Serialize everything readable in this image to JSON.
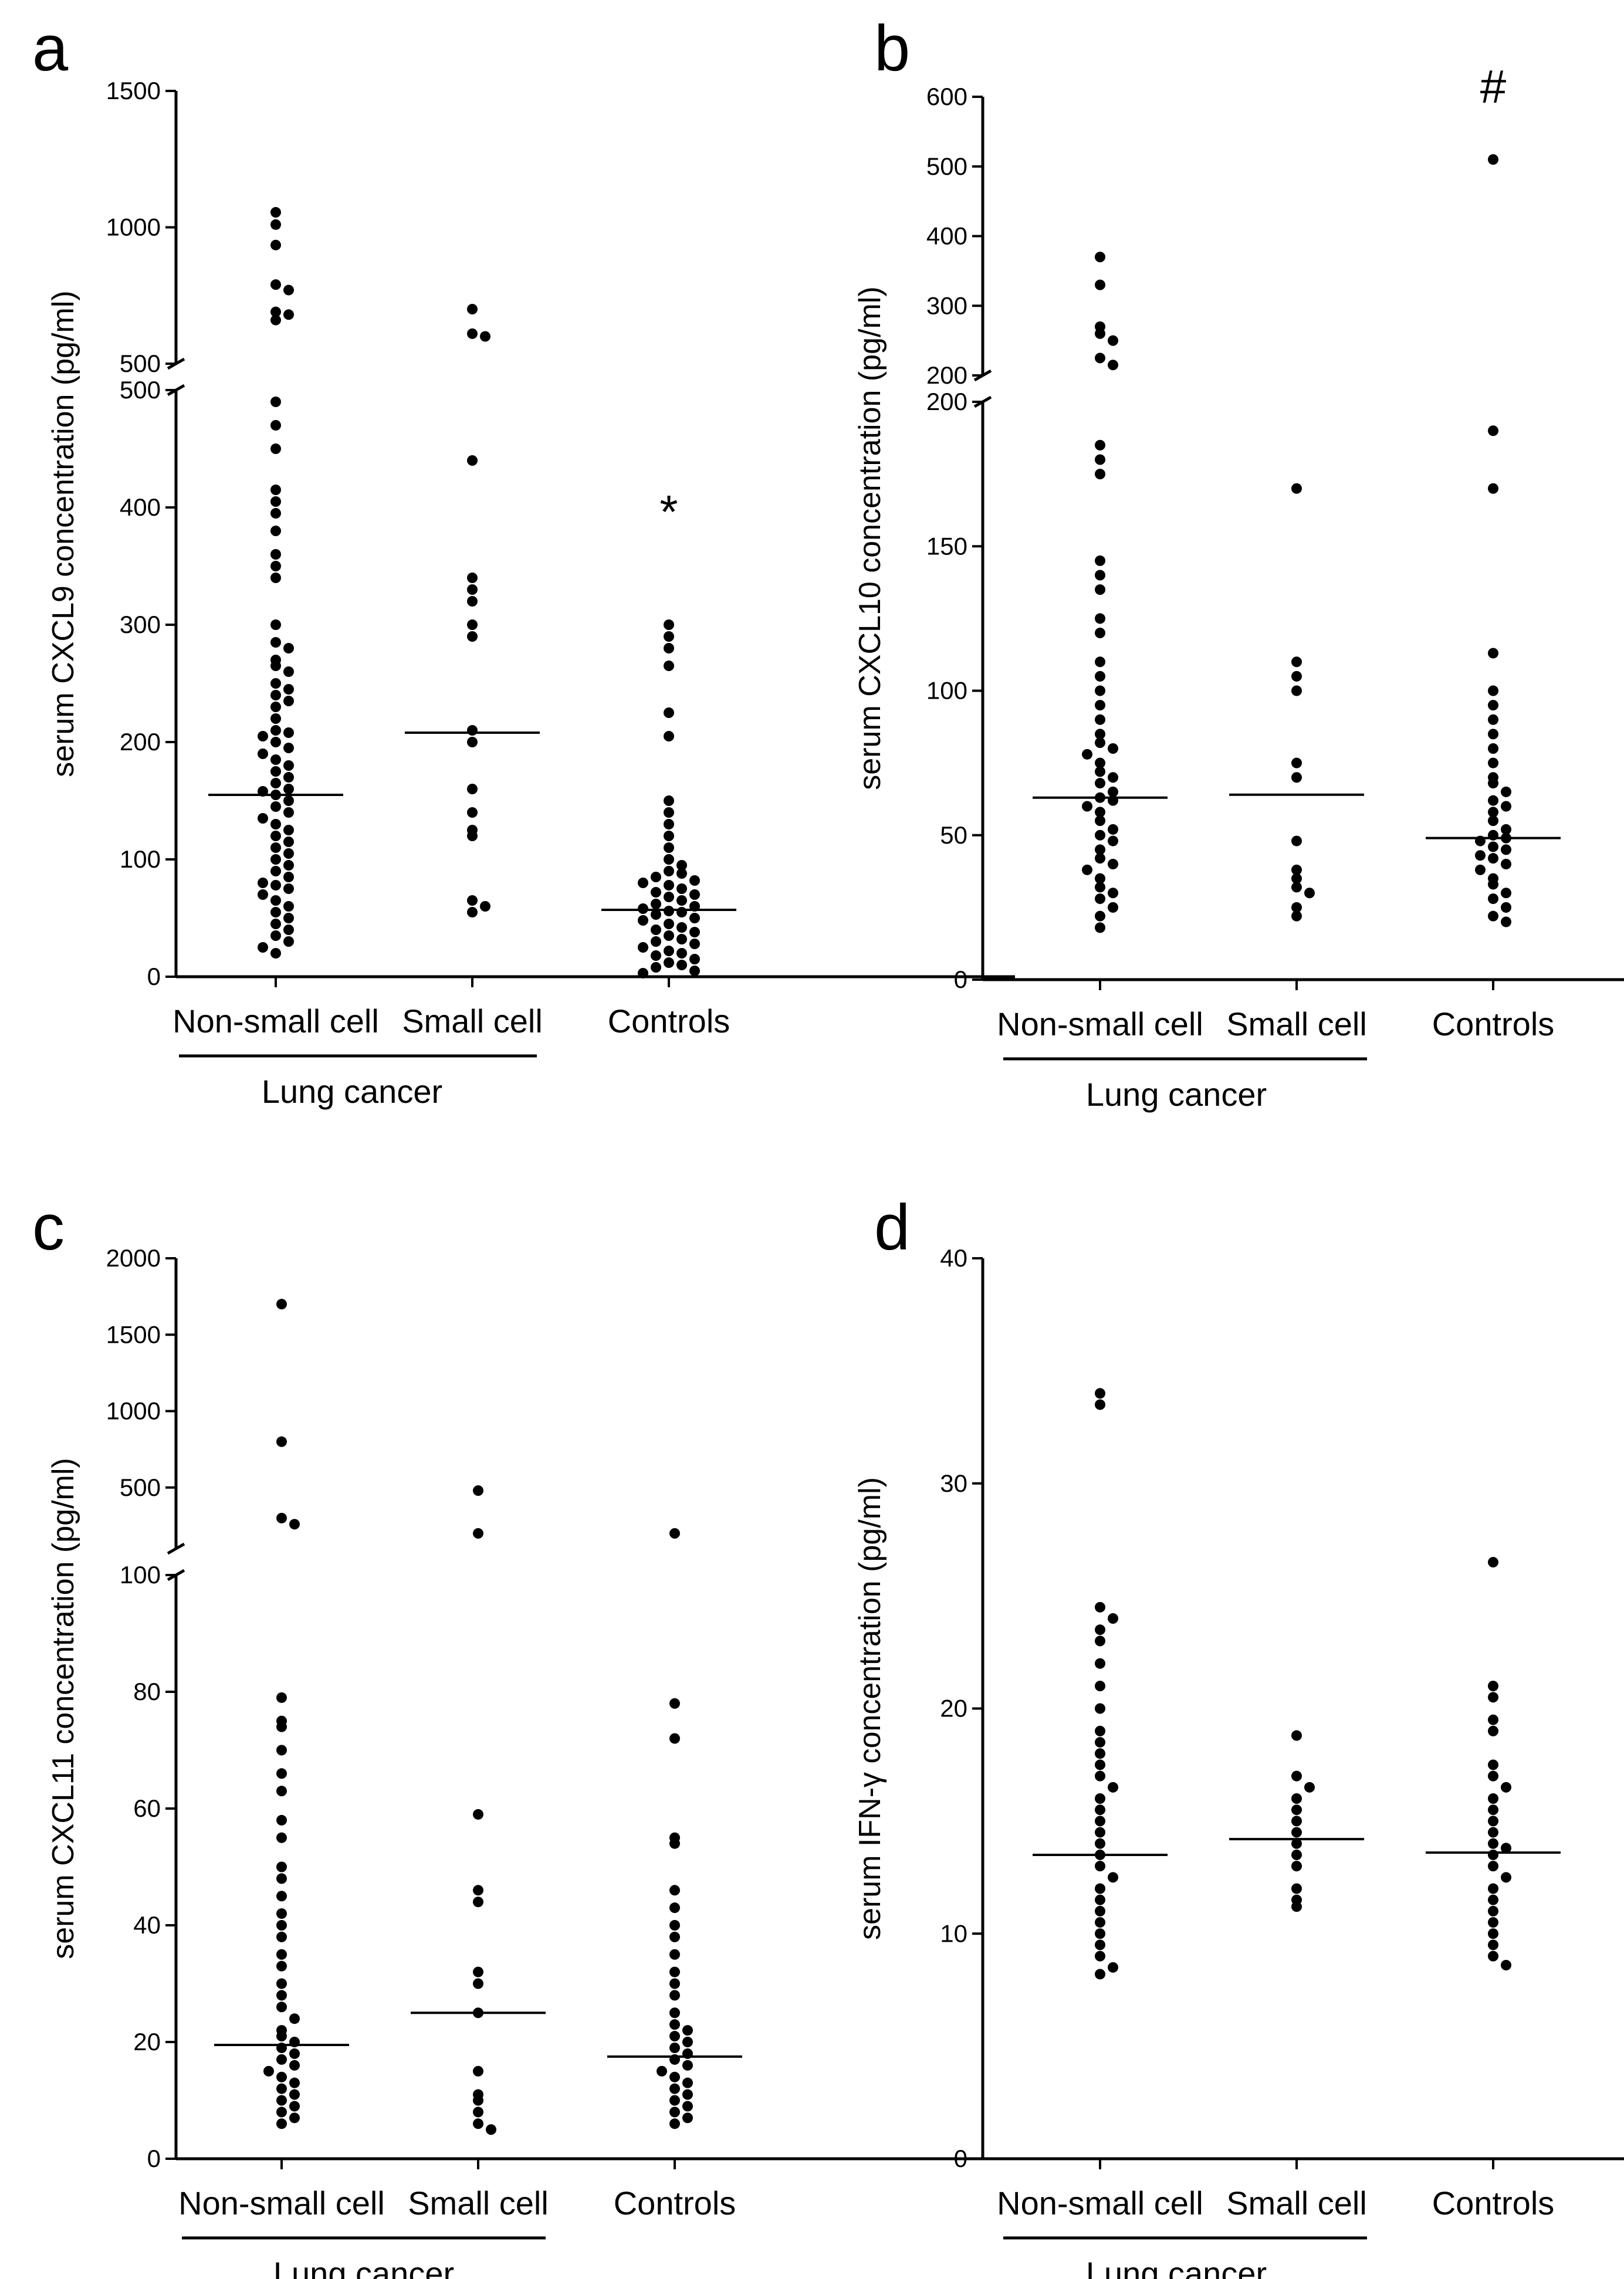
{
  "figure": {
    "description_panels": [
      "a",
      "b",
      "c",
      "d"
    ]
  },
  "chart_data": [
    {
      "panel": "a",
      "type": "scatter",
      "subtype": "dot-plot-with-median",
      "ylabel": "serum CXCL9 concentration (pg/ml)",
      "categories": [
        "Non-small cell",
        "Small cell",
        "Controls"
      ],
      "group_label": "Lung cancer",
      "annotation": "*",
      "annotation_category": "Controls",
      "axis_break": {
        "lower": [
          0,
          500
        ],
        "upper": [
          500,
          1500
        ]
      },
      "yticks_lower": [
        "0",
        "100",
        "200",
        "300",
        "400",
        "500"
      ],
      "yticks_upper": [
        "500",
        "1000",
        "1500"
      ],
      "medians": [
        155,
        208,
        57
      ],
      "series": [
        {
          "name": "Non-small cell",
          "values": [
            1055,
            1010,
            935,
            790,
            770,
            690,
            680,
            660,
            490,
            470,
            450,
            415,
            405,
            395,
            380,
            360,
            350,
            340,
            300,
            285,
            280,
            270,
            265,
            260,
            250,
            245,
            240,
            235,
            230,
            220,
            210,
            208,
            205,
            200,
            195,
            190,
            185,
            180,
            175,
            170,
            165,
            160,
            158,
            155,
            150,
            145,
            140,
            135,
            130,
            125,
            120,
            115,
            110,
            105,
            100,
            95,
            90,
            85,
            80,
            78,
            75,
            70,
            65,
            60,
            55,
            50,
            45,
            40,
            35,
            30,
            25,
            20
          ]
        },
        {
          "name": "Small cell",
          "values": [
            700,
            610,
            600,
            440,
            340,
            330,
            320,
            300,
            290,
            210,
            200,
            160,
            140,
            125,
            120,
            65,
            60,
            55
          ]
        },
        {
          "name": "Controls",
          "values": [
            300,
            290,
            280,
            265,
            225,
            205,
            150,
            140,
            130,
            120,
            110,
            100,
            95,
            90,
            88,
            85,
            82,
            80,
            78,
            75,
            72,
            70,
            68,
            65,
            62,
            60,
            58,
            56,
            55,
            53,
            50,
            48,
            45,
            42,
            40,
            38,
            35,
            32,
            30,
            28,
            25,
            22,
            20,
            18,
            15,
            12,
            10,
            8,
            5,
            3
          ]
        }
      ]
    },
    {
      "panel": "b",
      "type": "scatter",
      "subtype": "dot-plot-with-median",
      "ylabel": "serum CXCL10 concentration (pg/ml)",
      "categories": [
        "Non-small cell",
        "Small cell",
        "Controls"
      ],
      "group_label": "Lung cancer",
      "annotation": "#",
      "annotation_category": "Controls",
      "axis_break": {
        "lower": [
          0,
          200
        ],
        "upper": [
          200,
          600
        ]
      },
      "yticks_lower": [
        "0",
        "50",
        "100",
        "150",
        "200"
      ],
      "yticks_upper": [
        "200",
        "300",
        "400",
        "500",
        "600"
      ],
      "medians": [
        63,
        64,
        49
      ],
      "series": [
        {
          "name": "Non-small cell",
          "values": [
            370,
            330,
            270,
            260,
            250,
            225,
            215,
            185,
            180,
            175,
            145,
            140,
            135,
            125,
            120,
            110,
            105,
            100,
            95,
            90,
            85,
            82,
            80,
            78,
            75,
            72,
            70,
            68,
            65,
            63,
            62,
            60,
            58,
            55,
            52,
            50,
            48,
            45,
            42,
            40,
            38,
            35,
            32,
            30,
            28,
            25,
            22,
            18
          ]
        },
        {
          "name": "Small cell",
          "values": [
            170,
            110,
            105,
            100,
            75,
            70,
            48,
            38,
            35,
            32,
            30,
            25,
            22
          ]
        },
        {
          "name": "Controls",
          "values": [
            510,
            190,
            170,
            113,
            100,
            95,
            90,
            85,
            80,
            75,
            70,
            68,
            65,
            62,
            60,
            58,
            55,
            52,
            50,
            49,
            48,
            46,
            45,
            43,
            42,
            40,
            38,
            35,
            33,
            30,
            28,
            25,
            22,
            20
          ]
        }
      ]
    },
    {
      "panel": "c",
      "type": "scatter",
      "subtype": "dot-plot-with-median",
      "ylabel": "serum CXCL11 concentration (pg/ml)",
      "categories": [
        "Non-small cell",
        "Small cell",
        "Controls"
      ],
      "group_label": "Lung cancer",
      "annotation": "",
      "annotation_category": "",
      "axis_break": {
        "lower": [
          0,
          100
        ],
        "upper": [
          100,
          2000
        ]
      },
      "yticks_lower": [
        "0",
        "20",
        "40",
        "60",
        "80",
        "100"
      ],
      "yticks_upper": [
        "500",
        "1000",
        "1500",
        "2000"
      ],
      "medians": [
        19.5,
        25,
        17.5
      ],
      "series": [
        {
          "name": "Non-small cell",
          "values": [
            1700,
            800,
            300,
            260,
            79,
            75,
            74,
            70,
            66,
            63,
            58,
            55,
            50,
            48,
            45,
            42,
            40,
            38,
            35,
            33,
            30,
            28,
            26,
            24,
            22,
            21,
            20,
            19,
            18,
            17,
            16,
            15,
            14,
            13,
            12,
            11,
            10,
            9,
            8,
            7,
            6
          ]
        },
        {
          "name": "Small cell",
          "values": [
            480,
            200,
            59,
            46,
            44,
            32,
            30,
            25,
            15,
            11,
            10,
            8,
            6,
            5
          ]
        },
        {
          "name": "Controls",
          "values": [
            200,
            78,
            72,
            55,
            54,
            46,
            43,
            40,
            38,
            35,
            32,
            30,
            28,
            25,
            23,
            22,
            21,
            20,
            19,
            18,
            17,
            16,
            15,
            14,
            13,
            12,
            11,
            10,
            9,
            8,
            7,
            6
          ]
        }
      ]
    },
    {
      "panel": "d",
      "type": "scatter",
      "subtype": "dot-plot-with-median",
      "ylabel": "serum IFN-γ concentration (pg/ml)",
      "categories": [
        "Non-small cell",
        "Small cell",
        "Controls"
      ],
      "group_label": "Lung cancer",
      "annotation": "",
      "annotation_category": "",
      "axis_break": null,
      "ylim": [
        0,
        40
      ],
      "yticks": [
        "0",
        "10",
        "20",
        "30",
        "40"
      ],
      "medians": [
        13.5,
        14.2,
        13.6
      ],
      "series": [
        {
          "name": "Non-small cell",
          "values": [
            34,
            33.5,
            24.5,
            24,
            23.5,
            23,
            22,
            21,
            20,
            19,
            18.5,
            18,
            17.5,
            17,
            16.5,
            16,
            15.5,
            15,
            14.5,
            14,
            13.5,
            13,
            12.5,
            12,
            11.5,
            11,
            10.5,
            10,
            9.5,
            9,
            8.5,
            8.2
          ]
        },
        {
          "name": "Small cell",
          "values": [
            18.8,
            17,
            16.5,
            16,
            15.5,
            15,
            14.5,
            14,
            13.5,
            13,
            12,
            11.5,
            11.2
          ]
        },
        {
          "name": "Controls",
          "values": [
            26.5,
            21,
            20.5,
            19.5,
            19,
            17.5,
            17,
            16.5,
            16,
            15.5,
            15,
            14.5,
            14,
            13.8,
            13.5,
            13,
            12.5,
            12,
            11.5,
            11,
            10.5,
            10,
            9.5,
            9,
            8.6
          ]
        }
      ]
    }
  ]
}
